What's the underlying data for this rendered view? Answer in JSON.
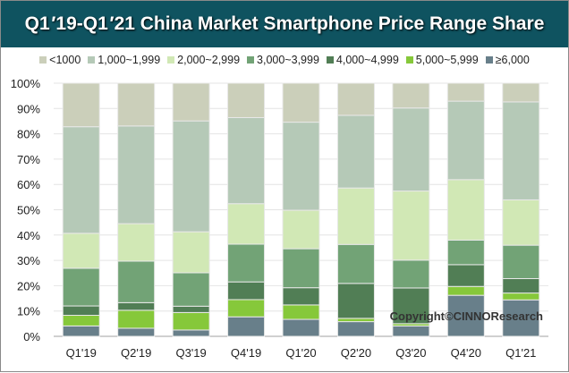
{
  "chart_data": {
    "type": "bar",
    "stacked": true,
    "title": "Q1 ′19-Q1 ′21 China Market Smartphone Price Range Share",
    "categories": [
      "Q1'19",
      "Q2'19",
      "Q3'19",
      "Q4'19",
      "Q1'20",
      "Q2'20",
      "Q3'20",
      "Q4'20",
      "Q1'21"
    ],
    "ylim": [
      0,
      100
    ],
    "yticks": [
      "0%",
      "10%",
      "20%",
      "30%",
      "40%",
      "50%",
      "60%",
      "70%",
      "80%",
      "90%",
      "100%"
    ],
    "grid": true,
    "legend_position": "top",
    "series": [
      {
        "name": "≥6,000",
        "color": "#687f8a",
        "values": [
          4.1,
          3.2,
          2.5,
          7.7,
          6.7,
          5.8,
          4.1,
          16.2,
          14.4
        ]
      },
      {
        "name": "5,000~5,999",
        "color": "#86c83a",
        "values": [
          4.2,
          7.1,
          6.9,
          6.8,
          5.7,
          1.3,
          0.9,
          3.5,
          2.7
        ]
      },
      {
        "name": "4,000~4,999",
        "color": "#517e55",
        "values": [
          3.7,
          3.0,
          2.5,
          7.0,
          6.8,
          13.8,
          14.1,
          8.6,
          5.7
        ]
      },
      {
        "name": "3,000~3,999",
        "color": "#72a376",
        "values": [
          14.9,
          16.4,
          13.2,
          14.9,
          15.4,
          15.4,
          11.0,
          9.7,
          13.2
        ]
      },
      {
        "name": "2,000~2,999",
        "color": "#d1e8b5",
        "values": [
          13.8,
          14.8,
          16.2,
          16.0,
          15.2,
          22.3,
          27.3,
          23.9,
          17.9
        ]
      },
      {
        "name": "1,000~1,999",
        "color": "#b5c9b7",
        "values": [
          42.1,
          38.6,
          43.8,
          34.0,
          34.8,
          28.7,
          32.8,
          31.0,
          38.7
        ]
      },
      {
        "name": "<1000",
        "color": "#cbcfba",
        "values": [
          17.2,
          16.9,
          14.9,
          13.6,
          15.4,
          12.7,
          9.8,
          7.1,
          7.4
        ]
      }
    ],
    "legend_order": [
      "<1000",
      "1,000~1,999",
      "2,000~2,999",
      "3,000~3,999",
      "4,000~4,999",
      "5,000~5,999",
      "≥6,000"
    ],
    "annotation": "Copyright©CINNOResearch"
  }
}
